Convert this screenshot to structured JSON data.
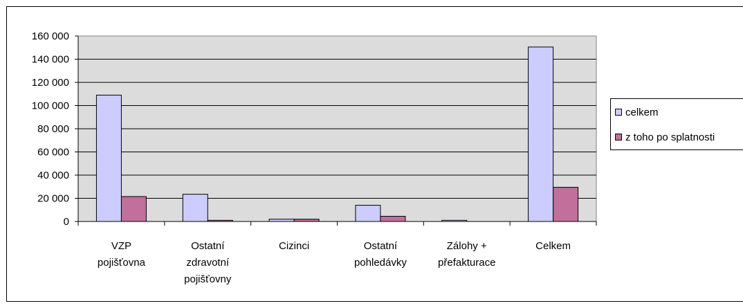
{
  "chart_data": {
    "type": "bar",
    "categories": [
      "VZP\npojišťovna",
      "Ostatní\nzdravotní\npojišťovny",
      "Cizinci",
      "Ostatní\npohledávky",
      "Zálohy +\npřefakturace",
      "Celkem"
    ],
    "series": [
      {
        "name": "celkem",
        "color": "#ccccff",
        "values": [
          109000,
          23500,
          2000,
          14000,
          1000,
          150500
        ]
      },
      {
        "name": "z toho po splatnosti",
        "color": "#c0709a",
        "values": [
          21500,
          1000,
          2000,
          4500,
          0,
          29500
        ]
      }
    ],
    "ylim": [
      0,
      160000
    ],
    "yticks": [
      0,
      {
        "value": 20000,
        "label": "20 000"
      },
      {
        "value": 40000,
        "label": "40 000"
      },
      {
        "value": 60000,
        "label": "60 000"
      },
      {
        "value": 80000,
        "label": "80 000"
      },
      {
        "value": 100000,
        "label": "100 000"
      },
      {
        "value": 120000,
        "label": "120 000"
      },
      {
        "value": 140000,
        "label": "140 000"
      },
      {
        "value": 160000,
        "label": "160 000"
      }
    ],
    "grid": true,
    "legend": "right"
  }
}
